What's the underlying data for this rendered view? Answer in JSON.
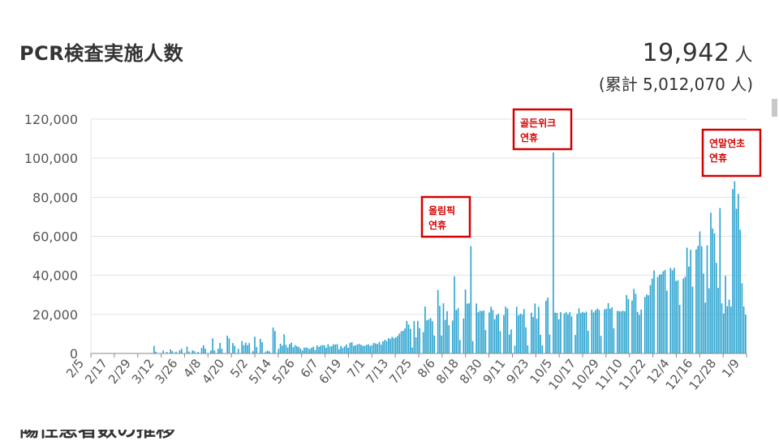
{
  "header": {
    "title": "PCR検査実施人数",
    "count_value": "19,942",
    "count_unit": "人",
    "cumulative": "(累計 5,012,070 人)"
  },
  "next_section": {
    "title": "陽性患者数の推移"
  },
  "chart_data": {
    "type": "bar",
    "bar_color": "#2aa3cf",
    "annotation_border": "#d40000",
    "annotation_text_color": "#d40000",
    "y_ticks": [
      "0",
      "20,000",
      "40,000",
      "60,000",
      "80,000",
      "100,000",
      "120,000"
    ],
    "ylim": [
      0,
      120000
    ],
    "grid": true,
    "x_tick_labels": [
      "2/5",
      "2/17",
      "2/29",
      "3/12",
      "3/26",
      "4/8",
      "4/20",
      "5/2",
      "5/14",
      "5/26",
      "6/7",
      "6/19",
      "7/1",
      "7/13",
      "7/25",
      "8/6",
      "8/18",
      "8/30",
      "9/11",
      "9/23",
      "10/5",
      "10/17",
      "10/29",
      "11/10",
      "11/22",
      "12/4",
      "12/16",
      "12/28",
      "1/9"
    ],
    "annotations": [
      {
        "text_lines": [
          "올림픽",
          "연휴"
        ],
        "near_label": "8/6"
      },
      {
        "text_lines": [
          "골든위크",
          "연휴"
        ],
        "near_label": "10/5"
      },
      {
        "text_lines": [
          "연말연초",
          "연휴"
        ],
        "near_label": "1/9"
      }
    ],
    "values": [
      0,
      0,
      0,
      0,
      0,
      0,
      0,
      0,
      0,
      0,
      0,
      0,
      0,
      0,
      0,
      0,
      0,
      0,
      0,
      0,
      0,
      0,
      0,
      0,
      0,
      0,
      0,
      0,
      0,
      0,
      0,
      0,
      0,
      0,
      3900,
      900,
      0,
      0,
      0,
      1500,
      0,
      800,
      0,
      2100,
      1200,
      0,
      900,
      0,
      1600,
      2400,
      0,
      0,
      3500,
      1000,
      0,
      1600,
      1200,
      0,
      800,
      0,
      2800,
      4200,
      2400,
      0,
      0,
      1500,
      7700,
      1500,
      0,
      2400,
      5400,
      2400,
      0,
      0,
      9100,
      7700,
      0,
      5300,
      3900,
      0,
      2400,
      0,
      6300,
      4300,
      5600,
      4300,
      5300,
      0,
      1200,
      8600,
      3300,
      0,
      7500,
      5800,
      0,
      1000,
      1400,
      1000,
      0,
      13300,
      11500,
      0,
      2400,
      5000,
      4000,
      9800,
      4500,
      3000,
      4800,
      5600,
      3200,
      4300,
      3700,
      3300,
      2500,
      1500,
      3000,
      3000,
      2800,
      2200,
      2900,
      3500,
      1800,
      4200,
      3300,
      4000,
      4300,
      4200,
      2900,
      4800,
      3600,
      3800,
      4700,
      4500,
      4800,
      2200,
      3800,
      2800,
      3600,
      4600,
      2900,
      5400,
      5800,
      3900,
      4200,
      4600,
      4900,
      4400,
      3900,
      4000,
      4400,
      4700,
      3800,
      4300,
      5400,
      5100,
      4800,
      5900,
      4500,
      6200,
      7000,
      6400,
      7800,
      7400,
      8500,
      7800,
      8200,
      9000,
      10200,
      11400,
      11600,
      12800,
      16600,
      14800,
      12600,
      3000,
      16600,
      8300,
      16700,
      13000,
      0,
      11000,
      24000,
      17000,
      17500,
      18100,
      16500,
      9200,
      0,
      32500,
      24400,
      9200,
      25700,
      17200,
      21700,
      14500,
      0,
      16900,
      39500,
      22200,
      23200,
      6900,
      0,
      17900,
      32800,
      25500,
      25700,
      55000,
      6300,
      0,
      25600,
      21100,
      21900,
      21700,
      22000,
      12000,
      0,
      21000,
      24000,
      22300,
      17500,
      19700,
      20300,
      11400,
      0,
      19600,
      24000,
      23000,
      9700,
      12300,
      0,
      4000,
      23900,
      19500,
      20400,
      20000,
      22700,
      13400,
      4200,
      0,
      20900,
      18700,
      25600,
      17800,
      23900,
      9600,
      4200,
      0,
      27000,
      28600,
      9700,
      0,
      103000,
      20900,
      20800,
      17500,
      21100,
      0,
      20500,
      21100,
      20000,
      21100,
      19000,
      0,
      9500,
      20200,
      23100,
      20700,
      21300,
      20800,
      21400,
      11600,
      0,
      22400,
      21000,
      22100,
      23000,
      22300,
      9000,
      0,
      22600,
      22900,
      25800,
      22900,
      23600,
      12900,
      0,
      21800,
      21700,
      21600,
      21900,
      21600,
      29900,
      27900,
      0,
      27100,
      33100,
      30600,
      21300,
      19800,
      22500,
      0,
      28900,
      30200,
      29800,
      35000,
      38400,
      42500,
      0,
      39200,
      40400,
      40600,
      42100,
      42800,
      32200,
      0,
      43800,
      42600,
      43800,
      37100,
      37500,
      24900,
      0,
      38300,
      39300,
      54200,
      44500,
      53100,
      34200,
      0,
      53300,
      55100,
      62500,
      54900,
      40900,
      26000,
      55400,
      33400,
      72100,
      64000,
      61500,
      46400,
      33600,
      74500,
      25700,
      20500,
      39800,
      24200,
      27500,
      24000,
      84200,
      88200,
      74100,
      81700,
      63400,
      36000,
      24100,
      19900
    ]
  }
}
